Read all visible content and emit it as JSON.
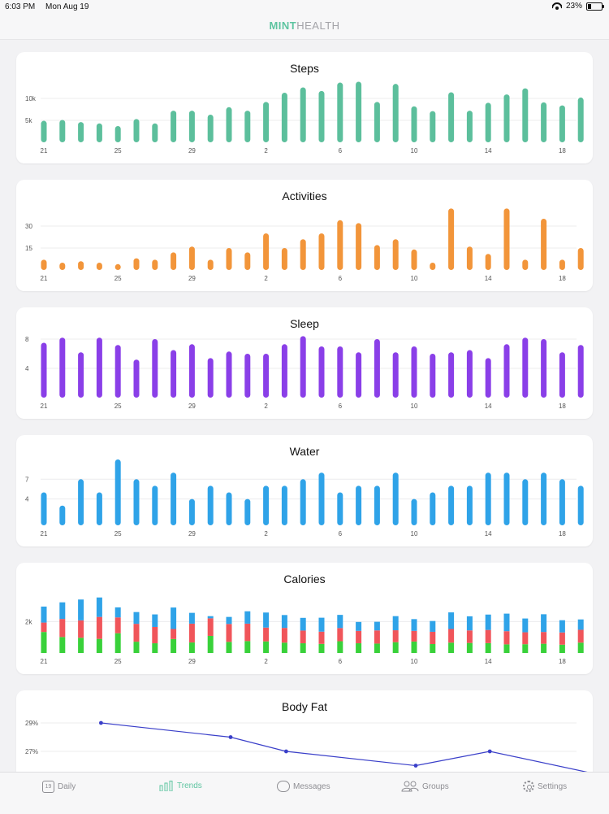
{
  "status_bar": {
    "time": "6:03 PM",
    "date": "Mon Aug 19",
    "battery_text": "23%",
    "battery_level": 0.23
  },
  "app": {
    "title_mint": "MINT",
    "title_health": "HEALTH"
  },
  "colors": {
    "accent": "#5ec4a0",
    "steps": "#5cbf9c",
    "activities": "#f2953a",
    "sleep": "#8a3fe8",
    "water": "#2fa3e8",
    "cal_green": "#39d13a",
    "cal_red": "#f0555a",
    "cal_blue": "#2fa3e8",
    "bodyfat": "#3a3fc9"
  },
  "x_tick_labels": [
    "21",
    "25",
    "29",
    "2",
    "6",
    "10",
    "14",
    "18"
  ],
  "chart_data": [
    {
      "type": "bar",
      "title": "Steps",
      "x": [
        "21",
        "22",
        "23",
        "24",
        "25",
        "26",
        "27",
        "28",
        "29",
        "30",
        "31",
        "1",
        "2",
        "3",
        "4",
        "5",
        "6",
        "7",
        "8",
        "9",
        "10",
        "11",
        "12",
        "13",
        "14",
        "15",
        "16",
        "17",
        "18",
        "19"
      ],
      "values": [
        4900,
        5100,
        4600,
        4300,
        3700,
        5300,
        4300,
        7200,
        7200,
        6300,
        8000,
        7200,
        9200,
        11300,
        12500,
        11700,
        13600,
        13800,
        9200,
        13300,
        8200,
        7100,
        11400,
        7200,
        9000,
        10900,
        12300,
        9100,
        8400,
        10200
      ],
      "y_ticks": [
        "5k",
        "10k"
      ],
      "ylim": [
        0,
        15000
      ]
    },
    {
      "type": "bar",
      "title": "Activities",
      "x": [
        "21",
        "22",
        "23",
        "24",
        "25",
        "26",
        "27",
        "28",
        "29",
        "30",
        "31",
        "1",
        "2",
        "3",
        "4",
        "5",
        "6",
        "7",
        "8",
        "9",
        "10",
        "11",
        "12",
        "13",
        "14",
        "15",
        "16",
        "17",
        "18",
        "19"
      ],
      "values": [
        7,
        5,
        6,
        5,
        4,
        8,
        7,
        12,
        16,
        7,
        15,
        12,
        25,
        15,
        21,
        25,
        34,
        32,
        17,
        21,
        14,
        5,
        42,
        16,
        11,
        42,
        7,
        35,
        7,
        15
      ],
      "y_ticks": [
        "15",
        "30"
      ],
      "ylim": [
        0,
        45
      ]
    },
    {
      "type": "bar",
      "title": "Sleep",
      "x": [
        "21",
        "22",
        "23",
        "24",
        "25",
        "26",
        "27",
        "28",
        "29",
        "30",
        "31",
        "1",
        "2",
        "3",
        "4",
        "5",
        "6",
        "7",
        "8",
        "9",
        "10",
        "11",
        "12",
        "13",
        "14",
        "15",
        "16",
        "17",
        "18",
        "19"
      ],
      "values": [
        7.5,
        8.2,
        6.2,
        8.2,
        7.2,
        5.2,
        8.0,
        6.5,
        7.3,
        5.4,
        6.3,
        6.0,
        6.0,
        7.3,
        8.4,
        7.0,
        7.0,
        6.2,
        8.0,
        6.2,
        7.0,
        6.0,
        6.2,
        6.5,
        5.4,
        7.3,
        8.2,
        8.0,
        6.2,
        7.2
      ],
      "y_ticks": [
        "4",
        "8"
      ],
      "ylim": [
        0,
        9
      ]
    },
    {
      "type": "bar",
      "title": "Water",
      "x": [
        "21",
        "22",
        "23",
        "24",
        "25",
        "26",
        "27",
        "28",
        "29",
        "30",
        "31",
        "1",
        "2",
        "3",
        "4",
        "5",
        "6",
        "7",
        "8",
        "9",
        "10",
        "11",
        "12",
        "13",
        "14",
        "15",
        "16",
        "17",
        "18",
        "19"
      ],
      "values": [
        5,
        3,
        7,
        5,
        10,
        7,
        6,
        8,
        4,
        6,
        5,
        4,
        6,
        6,
        7,
        8,
        5,
        6,
        6,
        8,
        4,
        5,
        6,
        6,
        8,
        8,
        7,
        8,
        7,
        6
      ],
      "y_ticks": [
        "4",
        "7"
      ],
      "ylim": [
        0,
        10
      ]
    },
    {
      "type": "bar",
      "title": "Calories",
      "stacked": true,
      "x": [
        "21",
        "22",
        "23",
        "24",
        "25",
        "26",
        "27",
        "28",
        "29",
        "30",
        "31",
        "1",
        "2",
        "3",
        "4",
        "5",
        "6",
        "7",
        "8",
        "9",
        "10",
        "11",
        "12",
        "13",
        "14",
        "15",
        "16",
        "17",
        "18",
        "19"
      ],
      "series": [
        {
          "values": [
            1340,
            1020,
            970,
            900,
            1260,
            720,
            620,
            890,
            670,
            1090,
            710,
            760,
            740,
            660,
            620,
            580,
            750,
            620,
            600,
            690,
            730,
            570,
            660,
            640,
            630,
            550,
            560,
            590,
            530,
            660
          ]
        },
        {
          "values": [
            600,
            1150,
            1110,
            1400,
            1010,
            1140,
            1040,
            640,
            1200,
            1120,
            1140,
            1110,
            880,
            940,
            810,
            780,
            840,
            790,
            840,
            760,
            680,
            780,
            870,
            800,
            840,
            840,
            760,
            750,
            780,
            820
          ]
        },
        {
          "values": [
            1020,
            1060,
            1330,
            1240,
            640,
            750,
            800,
            1370,
            690,
            140,
            450,
            790,
            960,
            820,
            810,
            890,
            840,
            570,
            550,
            900,
            750,
            690,
            1060,
            900,
            980,
            1120,
            880,
            1130,
            780,
            660
          ]
        }
      ],
      "y_ticks": [
        "2k"
      ],
      "ylim": [
        0,
        4200
      ]
    },
    {
      "type": "line",
      "title": "Body Fat",
      "x": [
        "24",
        "31",
        "3",
        "10",
        "14",
        "21"
      ],
      "values": [
        29.0,
        28.0,
        27.0,
        26.0,
        27.0,
        25.2
      ],
      "y_ticks": [
        "29%",
        "27%"
      ],
      "ylim": [
        24,
        30
      ]
    }
  ],
  "tabs": [
    {
      "icon": "calendar-icon",
      "badge": "19",
      "label": "Daily",
      "active": false
    },
    {
      "icon": "trends-icon",
      "label": "Trends",
      "active": true
    },
    {
      "icon": "chat-bubble-icon",
      "label": "Messages",
      "active": false
    },
    {
      "icon": "people-icon",
      "label": "Groups",
      "active": false
    },
    {
      "icon": "gear-icon",
      "label": "Settings",
      "active": false
    }
  ]
}
